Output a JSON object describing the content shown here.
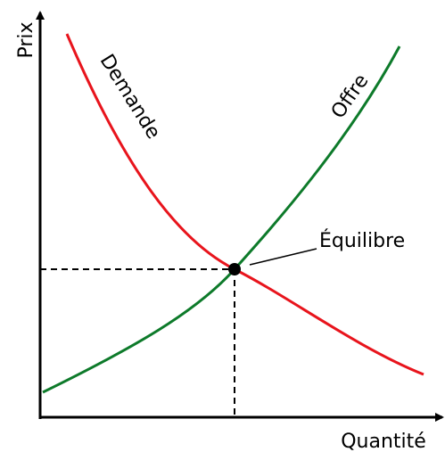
{
  "axes": {
    "y_label": "Prix",
    "x_label": "Quantité"
  },
  "curves": {
    "demand": "Demande",
    "supply": "Offre"
  },
  "equilibrium": {
    "label": "Équilibre"
  }
}
